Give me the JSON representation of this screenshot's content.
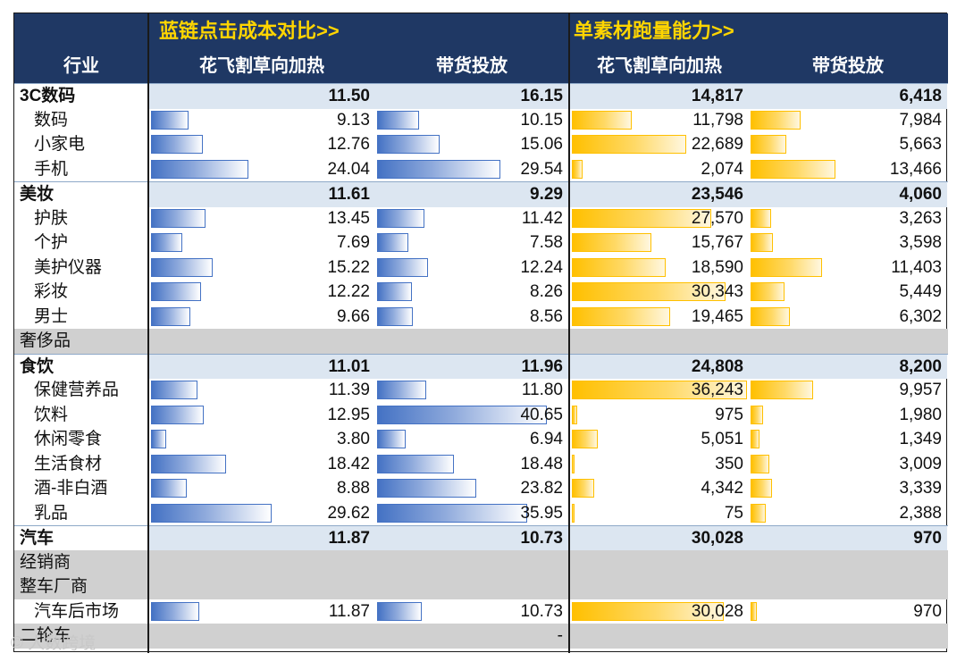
{
  "header": {
    "industry_label": "行业",
    "section1_title": "蓝链点击成本对比>>",
    "section2_title": "单素材跑量能力>>",
    "col_flower": "花飞割草向加热",
    "col_sales": "带货投放",
    "col_flower2": "花飞割草向加热",
    "col_sales2": "带货投放"
  },
  "watermark": "© 人数跨境",
  "colors": {
    "header_bg": "#1f3864",
    "title_yellow": "#ffd500",
    "bar_blue": "#4472c4",
    "bar_orange": "#ffc000",
    "group_fill": "#dce6f1",
    "grey_row": "#d0d0d0"
  },
  "chart_data": {
    "type": "table",
    "bar_max": {
      "cost": 40.65,
      "volume": 36243
    },
    "rows": [
      {
        "kind": "group",
        "label": "3C数码",
        "cost_flower": "11.50",
        "cost_sales": "16.15",
        "vol_flower": "14,817",
        "vol_sales": "6,418"
      },
      {
        "kind": "sub",
        "label": "数码",
        "cost_flower": "9.13",
        "cost_sales": "10.15",
        "vol_flower": "11,798",
        "vol_sales": "7,984"
      },
      {
        "kind": "sub",
        "label": "小家电",
        "cost_flower": "12.76",
        "cost_sales": "15.06",
        "vol_flower": "22,689",
        "vol_sales": "5,663"
      },
      {
        "kind": "sub",
        "label": "手机",
        "cost_flower": "24.04",
        "cost_sales": "29.54",
        "vol_flower": "2,074",
        "vol_sales": "13,466"
      },
      {
        "kind": "group",
        "label": "美妆",
        "cost_flower": "11.61",
        "cost_sales": "9.29",
        "vol_flower": "23,546",
        "vol_sales": "4,060"
      },
      {
        "kind": "sub",
        "label": "护肤",
        "cost_flower": "13.45",
        "cost_sales": "11.42",
        "vol_flower": "27,570",
        "vol_sales": "3,263"
      },
      {
        "kind": "sub",
        "label": "个护",
        "cost_flower": "7.69",
        "cost_sales": "7.58",
        "vol_flower": "15,767",
        "vol_sales": "3,598"
      },
      {
        "kind": "sub",
        "label": "美护仪器",
        "cost_flower": "15.22",
        "cost_sales": "12.24",
        "vol_flower": "18,590",
        "vol_sales": "11,403"
      },
      {
        "kind": "sub",
        "label": "彩妆",
        "cost_flower": "12.22",
        "cost_sales": "8.26",
        "vol_flower": "30,343",
        "vol_sales": "5,449"
      },
      {
        "kind": "sub",
        "label": "男士",
        "cost_flower": "9.66",
        "cost_sales": "8.56",
        "vol_flower": "19,465",
        "vol_sales": "6,302"
      },
      {
        "kind": "grey",
        "label": "奢侈品",
        "cost_flower": "",
        "cost_sales": "",
        "vol_flower": "",
        "vol_sales": ""
      },
      {
        "kind": "group",
        "label": "食饮",
        "cost_flower": "11.01",
        "cost_sales": "11.96",
        "vol_flower": "24,808",
        "vol_sales": "8,200"
      },
      {
        "kind": "sub",
        "label": "保健营养品",
        "cost_flower": "11.39",
        "cost_sales": "11.80",
        "vol_flower": "36,243",
        "vol_sales": "9,957"
      },
      {
        "kind": "sub",
        "label": "饮料",
        "cost_flower": "12.95",
        "cost_sales": "40.65",
        "vol_flower": "975",
        "vol_sales": "1,980"
      },
      {
        "kind": "sub",
        "label": "休闲零食",
        "cost_flower": "3.80",
        "cost_sales": "6.94",
        "vol_flower": "5,051",
        "vol_sales": "1,349"
      },
      {
        "kind": "sub",
        "label": "生活食材",
        "cost_flower": "18.42",
        "cost_sales": "18.48",
        "vol_flower": "350",
        "vol_sales": "3,009"
      },
      {
        "kind": "sub",
        "label": "酒-非白酒",
        "cost_flower": "8.88",
        "cost_sales": "23.82",
        "vol_flower": "4,342",
        "vol_sales": "3,339"
      },
      {
        "kind": "sub",
        "label": "乳品",
        "cost_flower": "29.62",
        "cost_sales": "35.95",
        "vol_flower": "75",
        "vol_sales": "2,388"
      },
      {
        "kind": "group",
        "label": "汽车",
        "cost_flower": "11.87",
        "cost_sales": "10.73",
        "vol_flower": "30,028",
        "vol_sales": "970"
      },
      {
        "kind": "grey",
        "label": "经销商",
        "cost_flower": "",
        "cost_sales": "",
        "vol_flower": "",
        "vol_sales": ""
      },
      {
        "kind": "grey",
        "label": "整车厂商",
        "cost_flower": "",
        "cost_sales": "",
        "vol_flower": "",
        "vol_sales": ""
      },
      {
        "kind": "sub",
        "label": "汽车后市场",
        "cost_flower": "11.87",
        "cost_sales": "10.73",
        "vol_flower": "30,028",
        "vol_sales": "970"
      },
      {
        "kind": "grey",
        "label": "二轮车",
        "cost_flower": "",
        "cost_sales": "-",
        "vol_flower": "",
        "vol_sales": ""
      }
    ]
  }
}
